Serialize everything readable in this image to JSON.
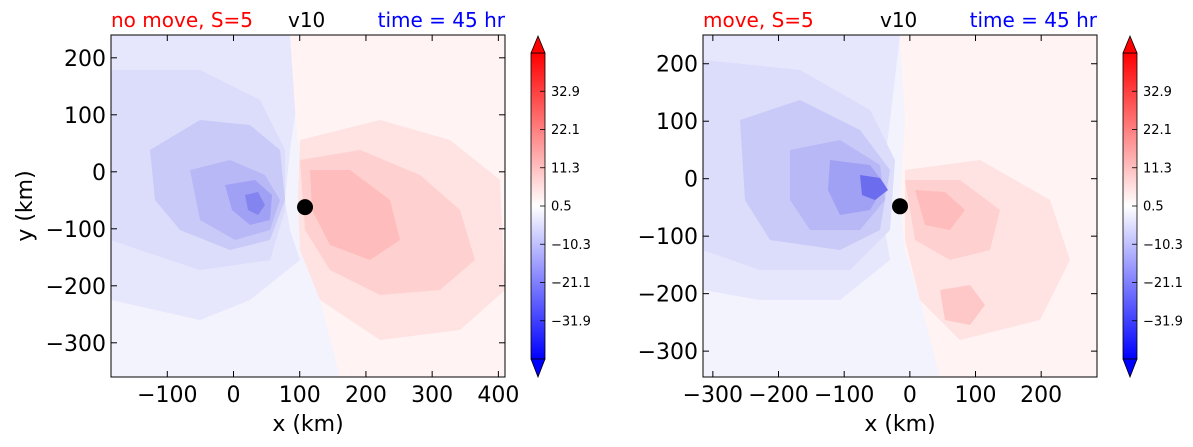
{
  "chart_data": [
    {
      "type": "heatmap",
      "title_left": "no move, S=5",
      "title_center": "v10",
      "title_right": "time = 45 hr",
      "xlabel": "x (km)",
      "ylabel": "y (km)",
      "xlim": [
        -185,
        410
      ],
      "ylim": [
        -360,
        240
      ],
      "xticks": [
        -100,
        0,
        100,
        200,
        300,
        400
      ],
      "yticks": [
        200,
        100,
        0,
        -100,
        -200,
        -300
      ],
      "xtick_labels": [
        "−100",
        "0",
        "100",
        "200",
        "300",
        "400"
      ],
      "ytick_labels": [
        "200",
        "100",
        "0",
        "−100",
        "−200",
        "−300"
      ],
      "center_marker": [
        108,
        -62
      ],
      "field_extrema": {
        "min_near": [
          40,
          -55
        ],
        "max_near": [
          170,
          -80
        ]
      }
    },
    {
      "type": "heatmap",
      "title_left": "move, S=5",
      "title_center": "v10",
      "title_right": "time = 45 hr",
      "xlabel": "x (km)",
      "ylabel": "",
      "xlim": [
        -315,
        285
      ],
      "ylim": [
        -345,
        250
      ],
      "xticks": [
        -300,
        -200,
        -100,
        0,
        100,
        200
      ],
      "yticks": [
        200,
        100,
        0,
        -100,
        -200,
        -300
      ],
      "xtick_labels": [
        "−300",
        "−200",
        "−100",
        "0",
        "100",
        "200"
      ],
      "ytick_labels": [
        "200",
        "100",
        "0",
        "−100",
        "−200",
        "−300"
      ],
      "center_marker": [
        -15,
        -48
      ],
      "field_extrema": {
        "min_near": [
          -45,
          -20
        ],
        "max_near": [
          40,
          -50
        ]
      }
    }
  ],
  "colorbar": {
    "tick_labels": [
      "32.9",
      "22.1",
      "11.3",
      "0.5",
      "−10.3",
      "−21.1",
      "−31.9"
    ],
    "tick_values": [
      32.9,
      22.1,
      11.3,
      0.5,
      -10.3,
      -21.1,
      -31.9
    ],
    "range": [
      -42.7,
      43.7
    ],
    "colormap": "bwr",
    "extend": "both"
  },
  "colors": {
    "title_left": "#ff0000",
    "title_center": "#000000",
    "title_right": "#0000ff",
    "marker": "#000000"
  }
}
